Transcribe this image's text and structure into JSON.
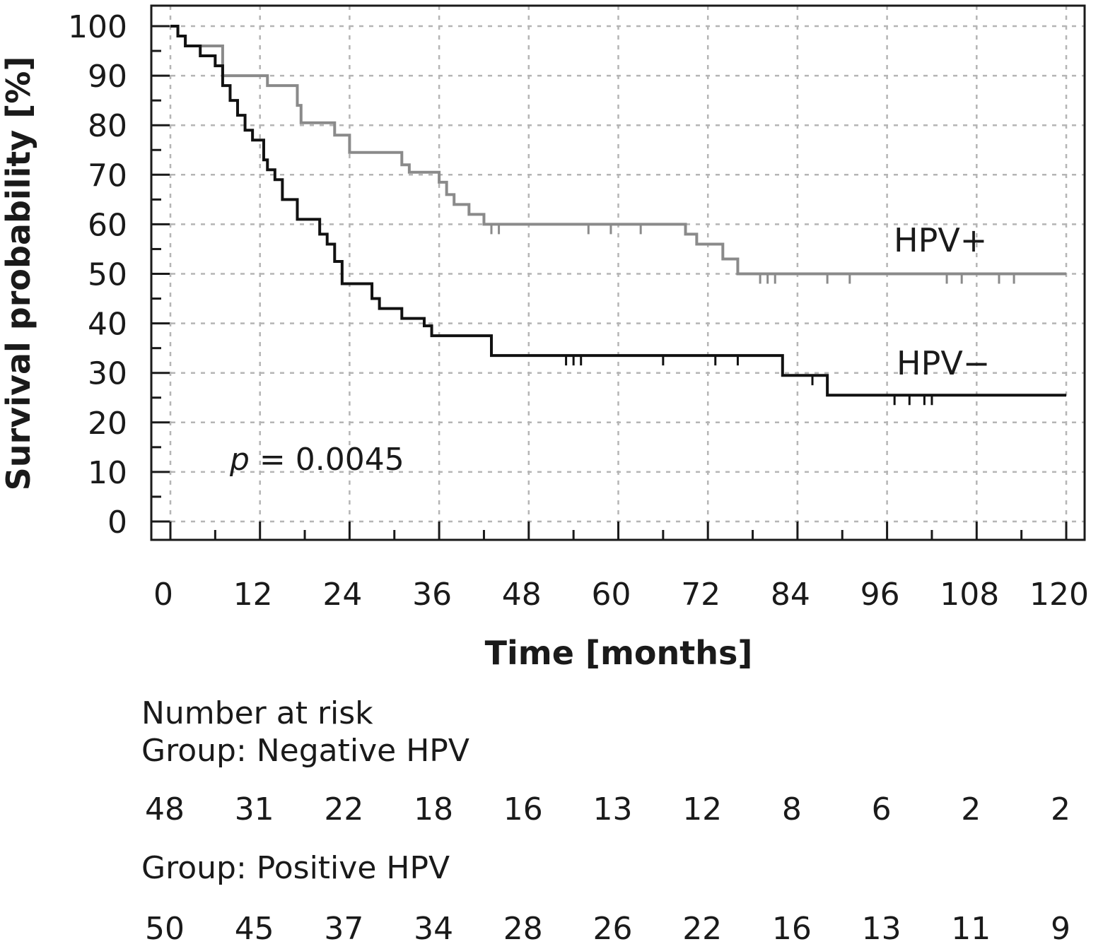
{
  "chart_data": {
    "type": "line",
    "subtype": "kaplan-meier step",
    "xlabel": "Time [months]",
    "ylabel": "Survival probability [%]",
    "xlim": [
      0,
      120
    ],
    "ylim": [
      0,
      100
    ],
    "xticks": [
      0,
      12,
      24,
      36,
      48,
      60,
      72,
      84,
      96,
      108,
      120
    ],
    "yticks": [
      0,
      10,
      20,
      30,
      40,
      50,
      60,
      70,
      80,
      90,
      100
    ],
    "grid": true,
    "annotation": {
      "prefix": "p",
      "text": " = 0.0045"
    },
    "series": [
      {
        "name": "HPV+",
        "color": "#8a8a8a",
        "steps": [
          [
            0,
            100
          ],
          [
            1,
            98
          ],
          [
            2,
            96
          ],
          [
            7,
            90
          ],
          [
            13,
            88
          ],
          [
            17,
            84
          ],
          [
            17.5,
            80.5
          ],
          [
            22,
            78
          ],
          [
            24,
            74.5
          ],
          [
            31,
            72
          ],
          [
            32,
            70.5
          ],
          [
            36,
            68.5
          ],
          [
            37,
            66
          ],
          [
            38,
            64
          ],
          [
            40,
            62
          ],
          [
            42,
            60
          ],
          [
            69,
            58
          ],
          [
            70.5,
            56
          ],
          [
            74,
            53
          ],
          [
            76,
            50
          ],
          [
            120,
            50
          ]
        ],
        "censor": [
          43,
          44,
          56,
          59,
          63,
          79,
          80,
          81,
          88,
          91,
          104,
          106,
          111,
          113
        ],
        "censor_y": [
          60,
          60,
          60,
          60,
          60,
          50,
          50,
          50,
          50,
          50,
          50,
          50,
          50,
          50
        ]
      },
      {
        "name": "HPV−",
        "color": "#111111",
        "steps": [
          [
            0,
            100
          ],
          [
            1,
            98
          ],
          [
            2,
            96
          ],
          [
            4,
            94
          ],
          [
            6,
            92
          ],
          [
            7,
            88
          ],
          [
            8,
            85
          ],
          [
            9,
            82
          ],
          [
            10,
            79
          ],
          [
            11,
            77
          ],
          [
            12.5,
            73
          ],
          [
            13,
            71
          ],
          [
            14,
            69
          ],
          [
            15,
            65
          ],
          [
            17,
            61
          ],
          [
            20,
            58
          ],
          [
            21,
            56
          ],
          [
            22,
            52.5
          ],
          [
            23,
            48
          ],
          [
            27,
            45
          ],
          [
            28,
            43
          ],
          [
            31,
            41
          ],
          [
            34,
            39.5
          ],
          [
            35,
            37.5
          ],
          [
            43,
            33.5
          ],
          [
            82,
            29.5
          ],
          [
            88,
            25.5
          ],
          [
            120,
            25.5
          ]
        ],
        "censor": [
          53,
          54,
          55,
          66,
          73,
          76,
          86,
          97,
          99,
          101,
          102
        ],
        "censor_y": [
          33.5,
          33.5,
          33.5,
          33.5,
          33.5,
          33.5,
          29.5,
          25.5,
          25.5,
          25.5,
          25.5
        ]
      }
    ]
  },
  "risk_table": {
    "title": "Number at risk",
    "groups": [
      {
        "label": "Group: Negative HPV",
        "values": [
          "48",
          "31",
          "22",
          "18",
          "16",
          "13",
          "12",
          "8",
          "6",
          "2",
          "2"
        ]
      },
      {
        "label": "Group: Positive HPV",
        "values": [
          "50",
          "45",
          "37",
          "34",
          "28",
          "26",
          "22",
          "16",
          "13",
          "11",
          "9"
        ]
      }
    ]
  }
}
